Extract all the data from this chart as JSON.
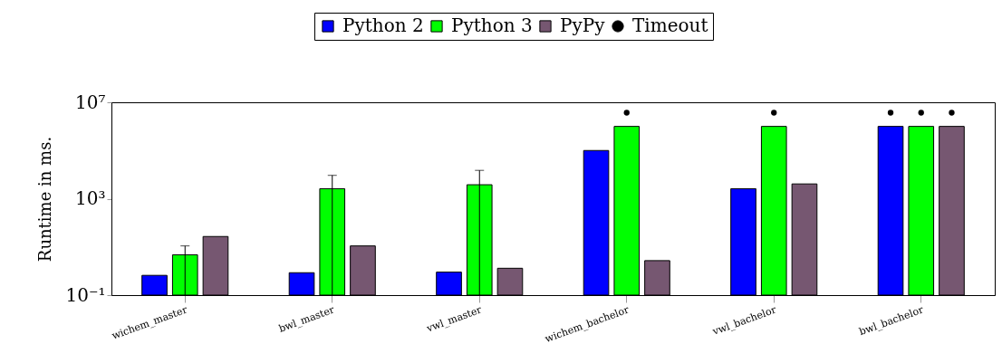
{
  "chart_data": {
    "type": "bar",
    "categories": [
      "wichem_master",
      "bwl_master",
      "vwl_master",
      "wichem_bachelor",
      "vwl_bachelor",
      "bwl_bachelor"
    ],
    "ylabel": "Runtime in ms.",
    "log": true,
    "ylim": [
      0.1,
      10000000
    ],
    "yticks": [
      {
        "value": 0.1,
        "label": "10⁻¹"
      },
      {
        "value": 1000,
        "label": "10³"
      },
      {
        "value": 10000000,
        "label": "10⁷"
      }
    ],
    "legend": "top",
    "series": [
      {
        "name": "Python 2",
        "color": "#0000ff",
        "values": [
          0.66,
          0.85,
          0.9,
          100000,
          2600,
          1000000
        ]
      },
      {
        "name": "Python 3",
        "color": "#00ff00",
        "values": [
          4.7,
          2600,
          3800,
          1000000,
          1000000,
          1000000
        ],
        "errors": [
          [
            0.1,
            11
          ],
          [
            0.1,
            9300
          ],
          [
            0.1,
            15000
          ],
          null,
          null,
          null
        ]
      },
      {
        "name": "PyPy",
        "color": "#765771",
        "values": [
          27,
          11,
          1.3,
          2.7,
          4100,
          1000000
        ]
      },
      {
        "name": "Timeout",
        "type": "scatter",
        "color": "#000000",
        "marker": "circle",
        "x": [
          "wichem_bachelor",
          "vwl_bachelor",
          "bwl_bachelor",
          "bwl_bachelor",
          "bwl_bachelor"
        ],
        "values": [
          3700000,
          3700000,
          3700000,
          3700000,
          3700000
        ]
      }
    ]
  }
}
